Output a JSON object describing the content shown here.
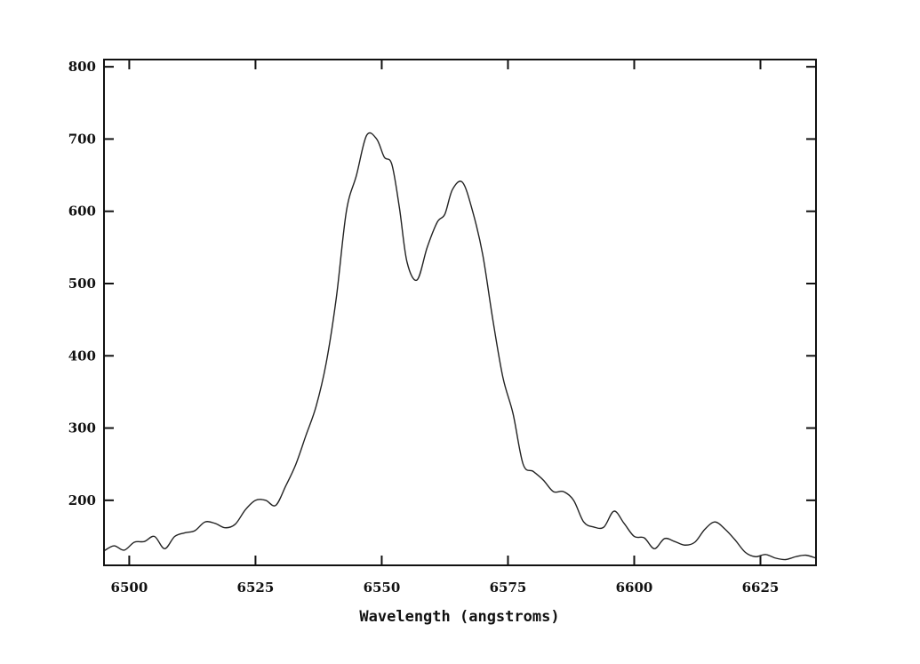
{
  "chart_data": {
    "type": "line",
    "title": "",
    "xlabel": "Wavelength (angstroms)",
    "ylabel": "",
    "xlim": [
      6495,
      6636
    ],
    "ylim": [
      110,
      810
    ],
    "grid": false,
    "x_ticks": [
      {
        "value": 6500,
        "label": "6500"
      },
      {
        "value": 6525,
        "label": "6525"
      },
      {
        "value": 6550,
        "label": "6550"
      },
      {
        "value": 6575,
        "label": "6575"
      },
      {
        "value": 6600,
        "label": "6600"
      },
      {
        "value": 6625,
        "label": "6625"
      }
    ],
    "y_ticks": [
      {
        "value": 200,
        "label": "200"
      },
      {
        "value": 300,
        "label": "300"
      },
      {
        "value": 400,
        "label": "400"
      },
      {
        "value": 500,
        "label": "500"
      },
      {
        "value": 600,
        "label": "600"
      },
      {
        "value": 700,
        "label": "700"
      },
      {
        "value": 800,
        "label": "800"
      }
    ],
    "series": [
      {
        "color": "#222222",
        "x": [
          6495,
          6497,
          6499,
          6501,
          6503,
          6505,
          6507,
          6509,
          6511,
          6513,
          6515,
          6517,
          6519,
          6521,
          6523,
          6525,
          6527,
          6529,
          6531,
          6533,
          6535,
          6537,
          6539,
          6541,
          6543,
          6545,
          6547,
          6549,
          6550.5,
          6552,
          6553.5,
          6555,
          6557,
          6559,
          6561,
          6562.5,
          6564,
          6566,
          6568,
          6570,
          6572,
          6574,
          6576,
          6578,
          6580,
          6582,
          6584,
          6586,
          6588,
          6590,
          6592,
          6594,
          6596,
          6598,
          6600,
          6602,
          6604,
          6606,
          6608,
          6610,
          6612,
          6614,
          6616,
          6618,
          6620,
          6622,
          6624,
          6626,
          6628,
          6630,
          6632,
          6634,
          6636
        ],
        "y": [
          130,
          137,
          131,
          142,
          143,
          150,
          133,
          150,
          155,
          158,
          170,
          168,
          162,
          167,
          187,
          200,
          200,
          193,
          220,
          250,
          290,
          330,
          390,
          480,
          600,
          650,
          705,
          700,
          675,
          665,
          605,
          530,
          505,
          550,
          585,
          596,
          630,
          640,
          600,
          540,
          450,
          370,
          320,
          250,
          240,
          228,
          212,
          212,
          200,
          170,
          163,
          163,
          185,
          168,
          150,
          148,
          133,
          147,
          143,
          138,
          142,
          160,
          170,
          160,
          145,
          128,
          122,
          125,
          120,
          118,
          122,
          124,
          120
        ]
      }
    ]
  }
}
